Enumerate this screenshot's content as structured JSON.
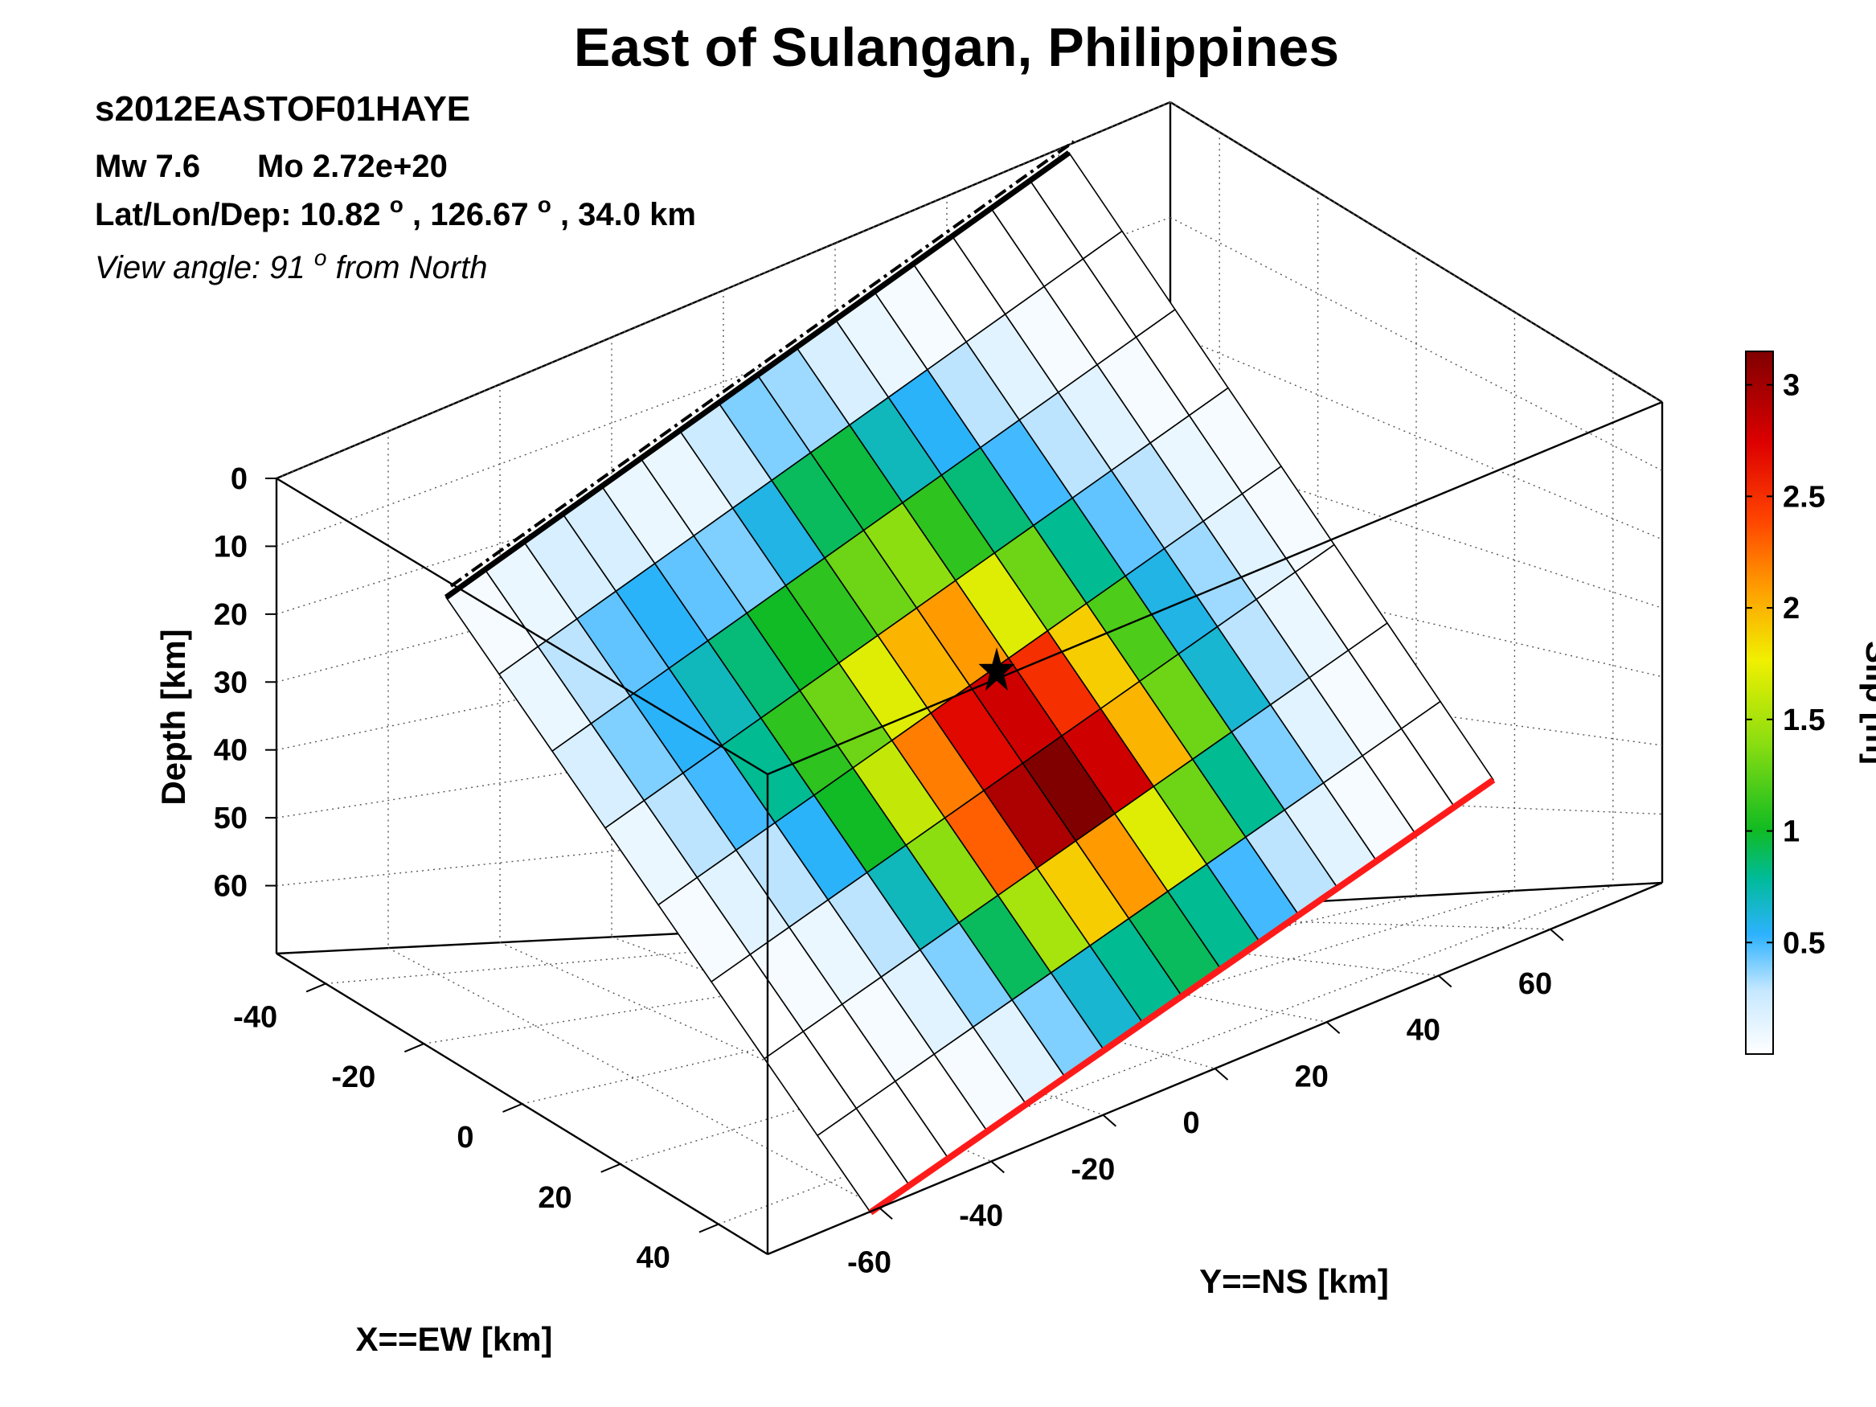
{
  "page": {
    "title": "East of Sulangan, Philippines",
    "event_id": "s2012EASTOF01HAYE",
    "magnitude_text": "Mw 7.6",
    "moment_text": "Mo 2.72e+20",
    "location_prefix": "Lat/Lon/Dep: ",
    "latitude": "10.82",
    "longitude": "126.67",
    "depth_text": ", 34.0 km",
    "degree_symbol": "o",
    "view_prefix": "View angle:  ",
    "view_angle": "91",
    "view_suffix": " from North"
  },
  "chart_data": {
    "type": "heatmap",
    "description_free": true,
    "xlabel": "X==EW [km]",
    "ylabel": "Y==NS [km]",
    "zlabel": "Depth [km]",
    "x_ticks": [
      -40,
      -20,
      0,
      20,
      40
    ],
    "y_ticks": [
      -60,
      -40,
      -20,
      0,
      20,
      40,
      60
    ],
    "z_ticks": [
      0,
      10,
      20,
      30,
      40,
      50,
      60
    ],
    "xlim": [
      -50,
      50
    ],
    "ylim": [
      -80,
      80
    ],
    "zlim": [
      0,
      70
    ],
    "grid": true,
    "colorbar": {
      "label": "Slip [m]",
      "ticks": [
        0.5,
        1,
        1.5,
        2,
        2.5,
        3
      ],
      "min": 0,
      "max": 3.15
    },
    "fault": {
      "strike_cells": 16,
      "dip_cells": 8,
      "top_trace_color": "#000000",
      "bottom_trace_color": "#ff1a1a",
      "slip": [
        [
          0.05,
          0.1,
          0.2,
          0.1,
          0.05,
          0.0,
          0.0,
          0.0
        ],
        [
          0.1,
          0.3,
          0.4,
          0.3,
          0.15,
          0.05,
          0.0,
          0.0
        ],
        [
          0.2,
          0.45,
          0.55,
          0.5,
          0.3,
          0.1,
          0.05,
          0.0
        ],
        [
          0.2,
          0.55,
          0.7,
          0.8,
          0.55,
          0.3,
          0.15,
          0.05
        ],
        [
          0.1,
          0.45,
          0.85,
          1.1,
          1.0,
          0.7,
          0.4,
          0.15
        ],
        [
          0.1,
          0.4,
          1.0,
          1.3,
          1.6,
          1.4,
          0.9,
          0.4
        ],
        [
          0.25,
          0.6,
          1.1,
          1.7,
          2.2,
          2.3,
          1.5,
          0.65
        ],
        [
          0.4,
          0.9,
          1.3,
          2.0,
          2.7,
          2.95,
          1.9,
          0.8
        ],
        [
          0.35,
          0.95,
          1.4,
          2.1,
          2.8,
          3.15,
          2.1,
          0.9
        ],
        [
          0.2,
          0.7,
          1.1,
          1.7,
          2.5,
          2.8,
          1.7,
          0.8
        ],
        [
          0.1,
          0.55,
          0.85,
          1.3,
          1.9,
          2.0,
          1.3,
          0.5
        ],
        [
          0.05,
          0.3,
          0.5,
          0.8,
          1.2,
          1.3,
          0.8,
          0.3
        ],
        [
          0.0,
          0.15,
          0.3,
          0.45,
          0.6,
          0.65,
          0.4,
          0.15
        ],
        [
          0.0,
          0.05,
          0.15,
          0.3,
          0.35,
          0.3,
          0.15,
          0.05
        ],
        [
          0.0,
          0.0,
          0.05,
          0.1,
          0.15,
          0.1,
          0.05,
          0.0
        ],
        [
          0.0,
          0.0,
          0.0,
          0.05,
          0.05,
          0.0,
          0.0,
          0.0
        ]
      ]
    },
    "hypocenter": {
      "x": 0,
      "y": 0,
      "depth": 34.0
    }
  }
}
